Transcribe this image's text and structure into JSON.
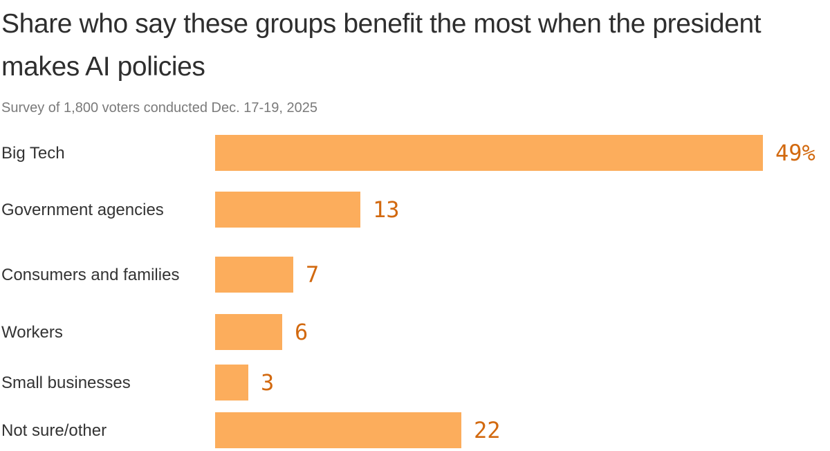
{
  "header": {
    "title": "Share who say these groups benefit the most when the president makes AI policies",
    "subtitle": "Survey of 1,800 voters conducted Dec. 17-19, 2025"
  },
  "colors": {
    "bar": "#fcad5c",
    "value_label": "#d2690f",
    "title": "#2e2e2e",
    "subtitle": "#7a7a7a",
    "category_label": "#333333"
  },
  "chart_data": {
    "type": "bar",
    "orientation": "horizontal",
    "title": "Share who say these groups benefit the most when the president makes AI policies",
    "subtitle": "Survey of 1,800 voters conducted Dec. 17-19, 2025",
    "categories": [
      "Big Tech",
      "Government agencies",
      "Consumers and families",
      "Workers",
      "Small businesses",
      "Not sure/other"
    ],
    "values": [
      49,
      13,
      7,
      6,
      3,
      22
    ],
    "value_labels": [
      "49%",
      "13",
      "7",
      "6",
      "3",
      "22"
    ],
    "unit": "percent",
    "xlim": [
      0,
      49
    ],
    "grid": false,
    "legend": false,
    "value_label_position": "right-of-bar"
  }
}
